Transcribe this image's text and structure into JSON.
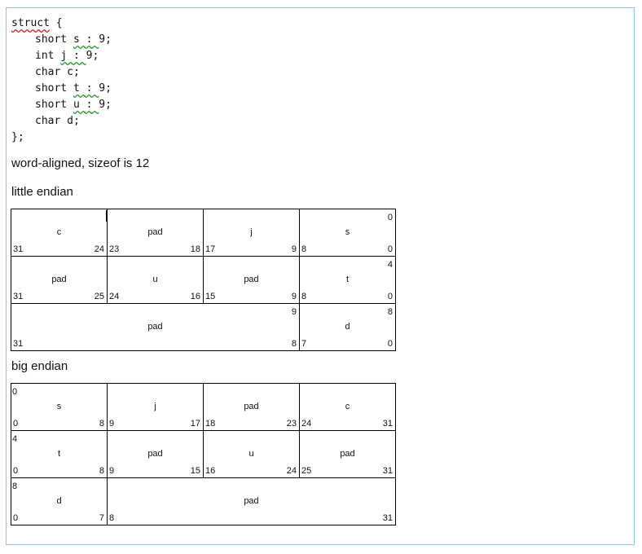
{
  "code": {
    "lines": [
      {
        "indent": false,
        "parts": [
          {
            "t": "struct",
            "u": "red"
          },
          {
            "t": " {"
          }
        ]
      },
      {
        "indent": true,
        "parts": [
          {
            "t": "short "
          },
          {
            "t": "s : ",
            "u": "grn"
          },
          {
            "t": "9;"
          }
        ]
      },
      {
        "indent": true,
        "parts": [
          {
            "t": "int "
          },
          {
            "t": "j : ",
            "u": "grn"
          },
          {
            "t": "9;"
          }
        ]
      },
      {
        "indent": true,
        "parts": [
          {
            "t": "char c;"
          }
        ]
      },
      {
        "indent": true,
        "parts": [
          {
            "t": "short "
          },
          {
            "t": "t : ",
            "u": "grn"
          },
          {
            "t": "9;"
          }
        ]
      },
      {
        "indent": true,
        "parts": [
          {
            "t": "short "
          },
          {
            "t": "u : ",
            "u": "grn"
          },
          {
            "t": "9;"
          }
        ]
      },
      {
        "indent": true,
        "parts": [
          {
            "t": "char d;"
          }
        ]
      },
      {
        "indent": false,
        "parts": [
          {
            "t": "};"
          }
        ]
      }
    ]
  },
  "summary": "word-aligned, sizeof is 12",
  "little": {
    "heading": "little endian",
    "offset_side": "right",
    "rows": [
      [
        {
          "label": "c",
          "lo": "31",
          "hi": "24",
          "span": 1
        },
        {
          "label": "pad",
          "lo": "23",
          "hi": "18",
          "span": 1
        },
        {
          "label": "j",
          "lo": "17",
          "hi": "9",
          "span": 1
        },
        {
          "label": "s",
          "lo": "8",
          "hi": "0",
          "span": 1,
          "offset": "0"
        }
      ],
      [
        {
          "label": "pad",
          "lo": "31",
          "hi": "25",
          "span": 1
        },
        {
          "label": "u",
          "lo": "24",
          "hi": "16",
          "span": 1
        },
        {
          "label": "pad",
          "lo": "15",
          "hi": "9",
          "span": 1
        },
        {
          "label": "t",
          "lo": "8",
          "hi": "0",
          "span": 1,
          "offset": "4"
        }
      ],
      [
        {
          "label": "pad",
          "lo": "31",
          "hi": "8",
          "span": 3,
          "offset": "9"
        },
        {
          "label": "d",
          "lo": "7",
          "hi": "0",
          "span": 1,
          "offset": "8"
        }
      ]
    ]
  },
  "big": {
    "heading": "big endian",
    "offset_side": "left",
    "rows": [
      [
        {
          "label": "s",
          "lo": "0",
          "hi": "8",
          "span": 1,
          "offset": "0"
        },
        {
          "label": "j",
          "lo": "9",
          "hi": "17",
          "span": 1
        },
        {
          "label": "pad",
          "lo": "18",
          "hi": "23",
          "span": 1
        },
        {
          "label": "c",
          "lo": "24",
          "hi": "31",
          "span": 1
        }
      ],
      [
        {
          "label": "t",
          "lo": "0",
          "hi": "8",
          "span": 1,
          "offset": "4"
        },
        {
          "label": "pad",
          "lo": "9",
          "hi": "15",
          "span": 1
        },
        {
          "label": "u",
          "lo": "16",
          "hi": "24",
          "span": 1
        },
        {
          "label": "pad",
          "lo": "25",
          "hi": "31",
          "span": 1
        }
      ],
      [
        {
          "label": "d",
          "lo": "0",
          "hi": "7",
          "span": 1,
          "offset": "8"
        },
        {
          "label": "pad",
          "lo": "8",
          "hi": "31",
          "span": 3
        }
      ]
    ]
  }
}
